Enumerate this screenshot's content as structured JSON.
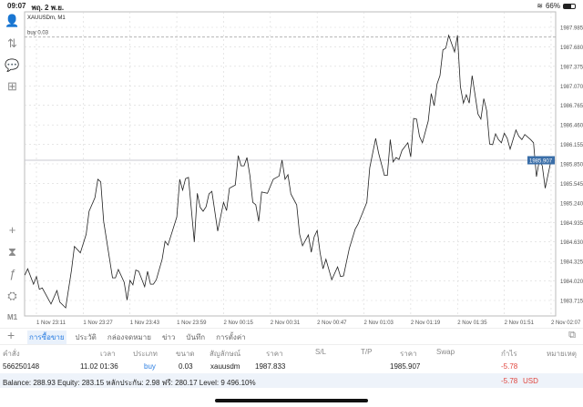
{
  "status_bar": {
    "time": "09:07",
    "date": "พฤ. 2 พ.ย.",
    "battery": "66%",
    "battery_level": 66
  },
  "sidebar": {
    "items": [
      {
        "icon": "account-icon",
        "glyph": "👤"
      },
      {
        "icon": "trade-arrows-icon",
        "glyph": "⇅"
      },
      {
        "icon": "chat-icon",
        "glyph": "💬"
      },
      {
        "icon": "new-document-icon",
        "glyph": "⊞"
      },
      {
        "icon": "crosshair-icon",
        "glyph": "+"
      },
      {
        "icon": "chart-type-icon",
        "glyph": "⧗"
      },
      {
        "icon": "indicators-icon",
        "glyph": "ƒ"
      },
      {
        "icon": "objects-icon",
        "glyph": "⛭"
      }
    ],
    "timeframe": "M1"
  },
  "chart": {
    "title": "XAUUSDm, M1",
    "order_line_label": "buy 0.03",
    "order_price": 1987.833,
    "current_price_label": "1985.907",
    "current_price": 1985.907,
    "colors": {
      "line": "#222222",
      "grid": "#d8d8d8",
      "price_tag": "#3a6ea8",
      "order_line": "#aaaaaa"
    }
  },
  "chart_data": {
    "type": "line",
    "ylim": [
      1983.6,
      1988.2
    ],
    "grid": true,
    "y_ticks": [
      "1987.985",
      "1987.680",
      "1987.375",
      "1987.070",
      "1986.765",
      "1986.460",
      "1986.155",
      "1985.850",
      "1985.545",
      "1985.240",
      "1984.935",
      "1984.630",
      "1984.325",
      "1984.020",
      "1983.715"
    ],
    "x_ticks": [
      "1 Nov 23:11",
      "1 Nov 23:27",
      "1 Nov 23:43",
      "1 Nov 23:59",
      "2 Nov 00:15",
      "2 Nov 00:31",
      "2 Nov 00:47",
      "2 Nov 01:03",
      "2 Nov 01:19",
      "2 Nov 01:35",
      "2 Nov 01:51",
      "2 Nov 02:07"
    ],
    "points": [
      [
        "23:07",
        1984.11
      ],
      [
        "23:08",
        1984.21
      ],
      [
        "23:10",
        1983.97
      ],
      [
        "23:11",
        1984.09
      ],
      [
        "23:12",
        1983.89
      ],
      [
        "23:13",
        1983.91
      ],
      [
        "23:16",
        1983.66
      ],
      [
        "23:18",
        1983.87
      ],
      [
        "23:19",
        1983.69
      ],
      [
        "23:21",
        1983.6
      ],
      [
        "23:23",
        1984.19
      ],
      [
        "23:24",
        1984.56
      ],
      [
        "23:26",
        1984.46
      ],
      [
        "23:28",
        1984.75
      ],
      [
        "23:29",
        1985.11
      ],
      [
        "23:31",
        1985.32
      ],
      [
        "23:32",
        1985.61
      ],
      [
        "23:33",
        1985.57
      ],
      [
        "23:34",
        1984.95
      ],
      [
        "23:37",
        1984.07
      ],
      [
        "23:38",
        1984.07
      ],
      [
        "23:39",
        1984.2
      ],
      [
        "23:41",
        1984.0
      ],
      [
        "23:42",
        1983.72
      ],
      [
        "23:43",
        1984.03
      ],
      [
        "23:44",
        1983.96
      ],
      [
        "23:45",
        1984.19
      ],
      [
        "23:46",
        1984.17
      ],
      [
        "23:48",
        1983.93
      ],
      [
        "23:49",
        1984.17
      ],
      [
        "23:50",
        1983.97
      ],
      [
        "23:51",
        1983.97
      ],
      [
        "23:52",
        1984.04
      ],
      [
        "23:54",
        1984.36
      ],
      [
        "23:55",
        1984.64
      ],
      [
        "23:56",
        1984.58
      ],
      [
        "23:59",
        1985.02
      ],
      [
        "00:00",
        1985.61
      ],
      [
        "00:01",
        1985.44
      ],
      [
        "00:02",
        1985.62
      ],
      [
        "00:03",
        1985.64
      ],
      [
        "00:05",
        1984.63
      ],
      [
        "00:06",
        1985.39
      ],
      [
        "00:07",
        1985.17
      ],
      [
        "00:08",
        1985.11
      ],
      [
        "00:09",
        1985.18
      ],
      [
        "00:10",
        1985.38
      ],
      [
        "00:11",
        1985.42
      ],
      [
        "00:13",
        1984.8
      ],
      [
        "00:15",
        1985.25
      ],
      [
        "00:16",
        1985.12
      ],
      [
        "00:17",
        1985.47
      ],
      [
        "00:19",
        1985.52
      ],
      [
        "00:20",
        1985.98
      ],
      [
        "00:21",
        1985.82
      ],
      [
        "00:22",
        1985.82
      ],
      [
        "00:23",
        1985.95
      ],
      [
        "00:24",
        1985.67
      ],
      [
        "00:25",
        1985.25
      ],
      [
        "00:26",
        1985.21
      ],
      [
        "00:27",
        1984.95
      ],
      [
        "00:28",
        1985.41
      ],
      [
        "00:30",
        1985.39
      ],
      [
        "00:32",
        1985.61
      ],
      [
        "00:34",
        1985.66
      ],
      [
        "00:35",
        1985.91
      ],
      [
        "00:36",
        1985.61
      ],
      [
        "00:37",
        1985.68
      ],
      [
        "00:38",
        1985.38
      ],
      [
        "00:40",
        1985.21
      ],
      [
        "00:41",
        1984.75
      ],
      [
        "00:42",
        1984.57
      ],
      [
        "00:44",
        1984.74
      ],
      [
        "00:45",
        1984.47
      ],
      [
        "00:46",
        1984.71
      ],
      [
        "00:47",
        1984.81
      ],
      [
        "00:48",
        1984.46
      ],
      [
        "00:49",
        1984.21
      ],
      [
        "00:50",
        1984.36
      ],
      [
        "00:52",
        1984.04
      ],
      [
        "00:54",
        1984.24
      ],
      [
        "00:55",
        1984.09
      ],
      [
        "00:56",
        1984.1
      ],
      [
        "00:58",
        1984.53
      ],
      [
        "01:00",
        1984.83
      ],
      [
        "01:01",
        1984.91
      ],
      [
        "01:04",
        1985.25
      ],
      [
        "01:05",
        1985.79
      ],
      [
        "01:07",
        1986.25
      ],
      [
        "01:08",
        1986.02
      ],
      [
        "01:10",
        1985.67
      ],
      [
        "01:11",
        1985.67
      ],
      [
        "01:12",
        1986.23
      ],
      [
        "01:13",
        1985.88
      ],
      [
        "01:14",
        1985.95
      ],
      [
        "01:15",
        1985.92
      ],
      [
        "01:16",
        1986.06
      ],
      [
        "01:18",
        1986.18
      ],
      [
        "01:19",
        1985.96
      ],
      [
        "01:20",
        1986.56
      ],
      [
        "01:21",
        1986.55
      ],
      [
        "01:22",
        1986.28
      ],
      [
        "01:23",
        1986.18
      ],
      [
        "01:25",
        1986.52
      ],
      [
        "01:26",
        1986.95
      ],
      [
        "01:27",
        1986.76
      ],
      [
        "01:28",
        1987.1
      ],
      [
        "01:29",
        1987.23
      ],
      [
        "01:30",
        1987.63
      ],
      [
        "01:31",
        1987.66
      ],
      [
        "01:32",
        1987.86
      ],
      [
        "01:34",
        1987.6
      ],
      [
        "01:35",
        1987.86
      ],
      [
        "01:36",
        1987.06
      ],
      [
        "01:37",
        1986.8
      ],
      [
        "01:38",
        1986.93
      ],
      [
        "01:39",
        1986.8
      ],
      [
        "01:40",
        1987.23
      ],
      [
        "01:42",
        1986.63
      ],
      [
        "01:43",
        1986.55
      ],
      [
        "01:44",
        1986.87
      ],
      [
        "01:45",
        1986.68
      ],
      [
        "01:46",
        1986.16
      ],
      [
        "01:47",
        1986.15
      ],
      [
        "01:48",
        1986.32
      ],
      [
        "01:49",
        1986.23
      ],
      [
        "01:50",
        1986.18
      ],
      [
        "01:51",
        1986.33
      ],
      [
        "01:52",
        1986.25
      ],
      [
        "01:53",
        1986.08
      ],
      [
        "01:55",
        1986.38
      ],
      [
        "01:56",
        1986.28
      ],
      [
        "01:57",
        1986.23
      ],
      [
        "01:58",
        1986.31
      ],
      [
        "02:00",
        1986.23
      ],
      [
        "02:01",
        1986.18
      ],
      [
        "02:02",
        1985.65
      ],
      [
        "02:03",
        1985.91
      ],
      [
        "02:04",
        1985.82
      ],
      [
        "02:05",
        1985.47
      ],
      [
        "02:07",
        1985.91
      ]
    ]
  },
  "tabs": {
    "items": [
      "การซื้อขาย",
      "ประวัติ",
      "กล่องจดหมาย",
      "ข่าว",
      "บันทึก",
      "การตั้งค่า"
    ],
    "active": 0
  },
  "table": {
    "headers": [
      "คำสั่ง",
      "เวลา",
      "ประเภท",
      "ขนาด",
      "สัญลักษณ์",
      "ราคา",
      "S/L",
      "T/P",
      "ราคา",
      "Swap",
      "กำไร",
      "หมายเหตุ"
    ],
    "rows": [
      {
        "order": "566250148",
        "time": "11.02 01:36",
        "type": "buy",
        "volume": "0.03",
        "symbol": "xauusdm",
        "open_price": "1987.833",
        "sl": "",
        "tp": "",
        "price": "1985.907",
        "swap": "",
        "profit": "-5.78",
        "comment": ""
      }
    ]
  },
  "summary": {
    "text": "Balance: 288.93 Equity: 283.15 หลักประกัน: 2.98 ฟรี: 280.17 Level: 9 496.10%",
    "profit": "-5.78",
    "currency": "USD"
  }
}
